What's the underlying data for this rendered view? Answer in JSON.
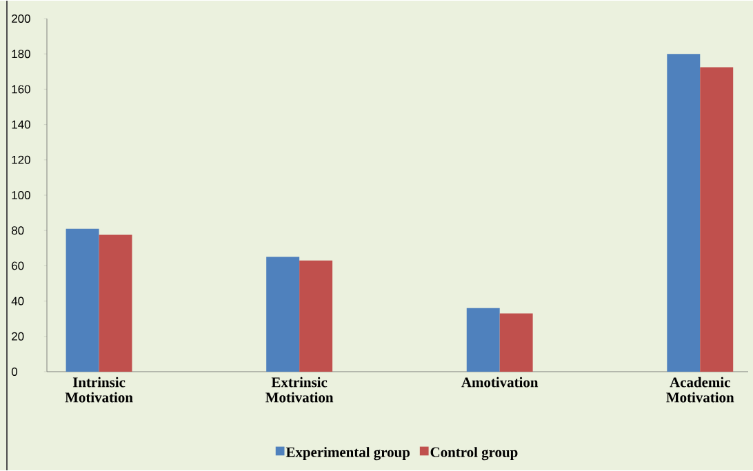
{
  "chart_data": {
    "type": "bar",
    "categories": [
      "Intrinsic Motivation",
      "Extrinsic Motivation",
      "Amotivation",
      "Academic Motivation"
    ],
    "series": [
      {
        "name": "Experimental group",
        "color": "#4f81bd",
        "values": [
          81,
          65,
          36,
          180
        ]
      },
      {
        "name": "Control group",
        "color": "#c0504d",
        "values": [
          77.5,
          63,
          33,
          172.5
        ]
      }
    ],
    "ylim": [
      0,
      200
    ],
    "yticks": [
      0,
      20,
      40,
      60,
      80,
      100,
      120,
      140,
      160,
      180,
      200
    ],
    "grid": false,
    "legend": "bottom"
  }
}
